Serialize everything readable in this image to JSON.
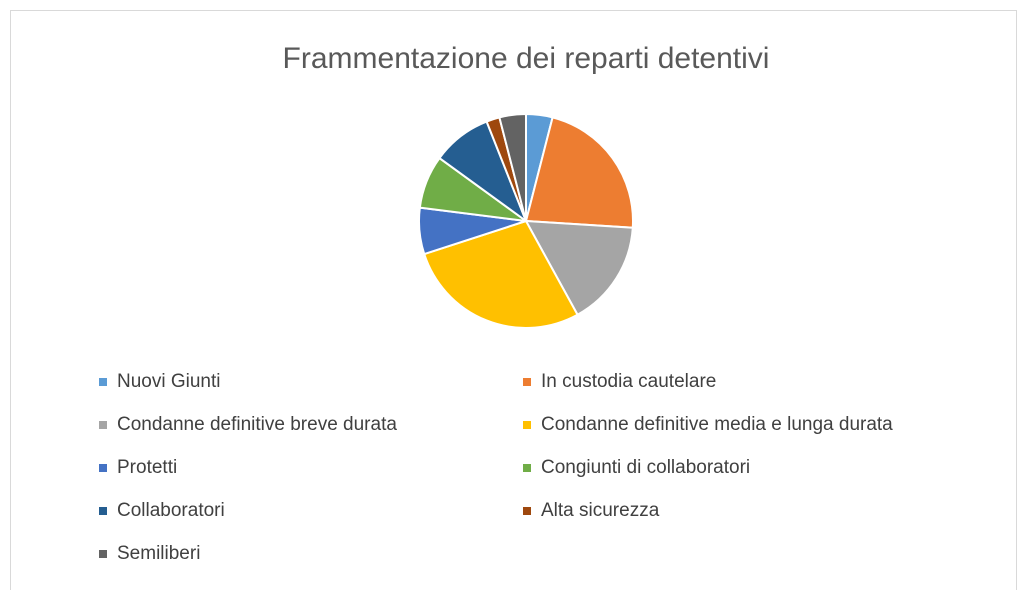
{
  "chart_data": {
    "type": "pie",
    "title": "Frammentazione dei reparti detentivi",
    "categories": [
      "Nuovi Giunti",
      "In custodia cautelare",
      "Condanne definitive breve durata",
      "Condanne definitive media e lunga durata",
      "Protetti",
      "Congiunti di collaboratori",
      "Collaboratori",
      "Alta sicurezza",
      "Semiliberi"
    ],
    "values": [
      4,
      22,
      16,
      28,
      7,
      8,
      9,
      2,
      4
    ],
    "colors": [
      "#5b9bd5",
      "#ed7d31",
      "#a5a5a5",
      "#ffc000",
      "#4472c4",
      "#70ad47",
      "#255e91",
      "#9e480e",
      "#636363"
    ],
    "legend": "bottom"
  }
}
